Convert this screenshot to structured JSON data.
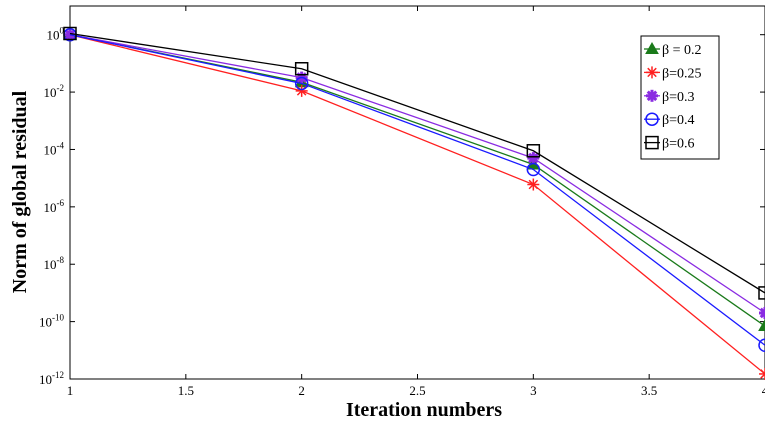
{
  "chart_data": {
    "type": "line",
    "title": "",
    "xlabel": "Iteration numbers",
    "ylabel": "Norm of global residual",
    "x": [
      1,
      2,
      3,
      4
    ],
    "xlim": [
      1,
      4
    ],
    "xticks": [
      "1",
      "1.5",
      "2",
      "2.5",
      "3",
      "3.5",
      "4"
    ],
    "ylog": true,
    "ylim": [
      1e-12,
      10
    ],
    "ytick_exponents": [
      "0",
      "-2",
      "-4",
      "-6",
      "-8",
      "-10",
      "-12"
    ],
    "ytick_base": "10",
    "grid": false,
    "legend_position": "top-right",
    "series": [
      {
        "name": "β = 0.2",
        "color": "#1a7a1a",
        "marker": "triangle-filled",
        "values": [
          1.0,
          0.022,
          3e-05,
          7e-11
        ]
      },
      {
        "name": "β=0.25",
        "color": "#ff2020",
        "marker": "asterisk",
        "values": [
          1.0,
          0.011,
          6e-06,
          1.5e-12
        ]
      },
      {
        "name": "β=0.3",
        "color": "#8a2be2",
        "marker": "star-filled",
        "values": [
          1.0,
          0.032,
          5e-05,
          2e-10
        ]
      },
      {
        "name": "β=0.4",
        "color": "#1a1aff",
        "marker": "circle-open",
        "values": [
          1.0,
          0.02,
          2e-05,
          1.5e-11
        ]
      },
      {
        "name": "β=0.6",
        "color": "#000000",
        "marker": "square-open",
        "values": [
          1.1,
          0.065,
          9e-05,
          1e-09
        ]
      }
    ]
  }
}
